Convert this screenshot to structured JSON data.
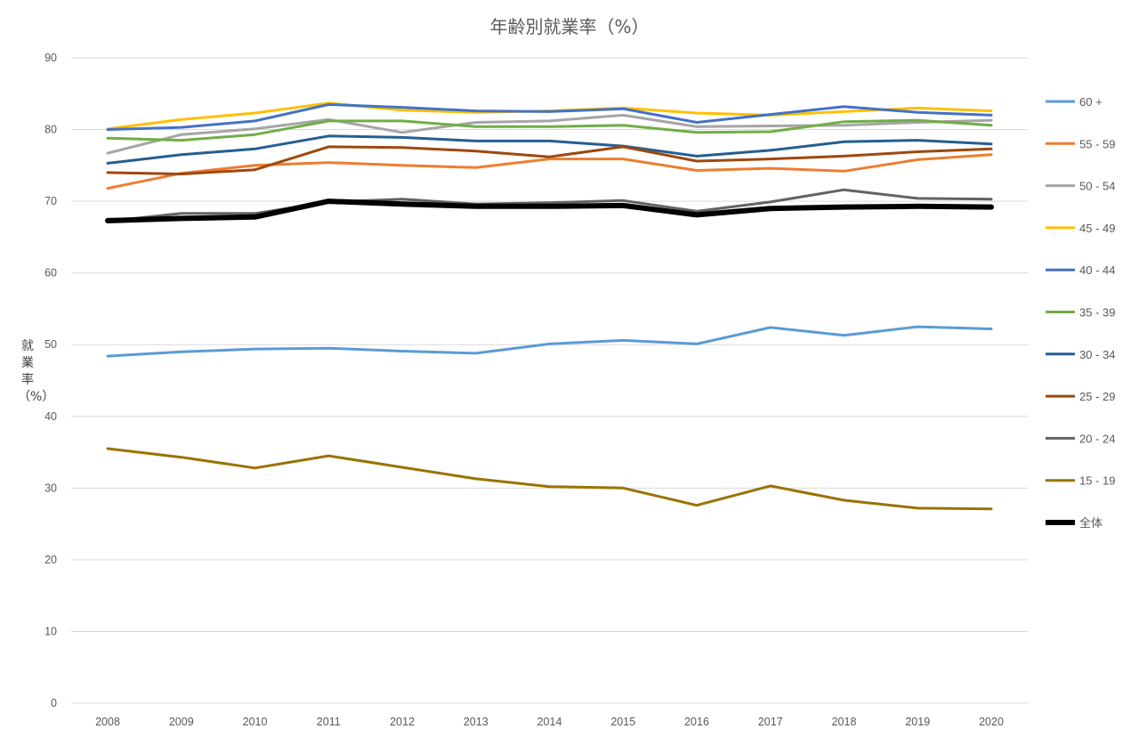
{
  "chart_data": {
    "type": "line",
    "title": "年齢別就業率（%）",
    "xlabel": "",
    "ylabel": "就業率（%）",
    "ylim": [
      0,
      90
    ],
    "yticks": [
      0,
      10,
      20,
      30,
      40,
      50,
      60,
      70,
      80,
      90
    ],
    "grid": true,
    "legend_position": "right",
    "categories": [
      "2008",
      "2009",
      "2010",
      "2011",
      "2012",
      "2013",
      "2014",
      "2015",
      "2016",
      "2017",
      "2018",
      "2019",
      "2020"
    ],
    "series": [
      {
        "name": "60 +",
        "color": "#5b9bd5",
        "width": 3,
        "values": [
          48.4,
          49.0,
          49.4,
          49.5,
          49.1,
          48.8,
          50.1,
          50.6,
          50.1,
          52.4,
          51.3,
          52.5,
          52.2
        ]
      },
      {
        "name": "55 - 59",
        "color": "#ed7d31",
        "width": 3,
        "values": [
          71.8,
          73.9,
          75.0,
          75.4,
          75.0,
          74.7,
          75.9,
          75.9,
          74.3,
          74.6,
          74.2,
          75.8,
          76.5
        ]
      },
      {
        "name": "50 - 54",
        "color": "#a5a5a5",
        "width": 3,
        "values": [
          76.7,
          79.3,
          80.1,
          81.4,
          79.6,
          81.0,
          81.2,
          82.0,
          80.4,
          80.5,
          80.6,
          81.0,
          81.3
        ]
      },
      {
        "name": "45 - 49",
        "color": "#ffc000",
        "width": 3,
        "values": [
          80.1,
          81.4,
          82.3,
          83.7,
          82.7,
          82.4,
          82.6,
          83.0,
          82.3,
          82.0,
          82.5,
          83.0,
          82.6
        ]
      },
      {
        "name": "40 - 44",
        "color": "#4472c4",
        "width": 3,
        "values": [
          80.0,
          80.3,
          81.2,
          83.5,
          83.1,
          82.6,
          82.5,
          82.9,
          81.0,
          82.1,
          83.2,
          82.4,
          82.0
        ]
      },
      {
        "name": "35 - 39",
        "color": "#70ad47",
        "width": 3,
        "values": [
          78.8,
          78.5,
          79.3,
          81.2,
          81.2,
          80.4,
          80.4,
          80.6,
          79.6,
          79.7,
          81.1,
          81.3,
          80.6
        ]
      },
      {
        "name": "30 - 34",
        "color": "#255e91",
        "width": 3,
        "values": [
          75.3,
          76.5,
          77.3,
          79.1,
          78.9,
          78.4,
          78.4,
          77.7,
          76.3,
          77.1,
          78.3,
          78.5,
          78.0
        ]
      },
      {
        "name": "25 - 29",
        "color": "#9e480e",
        "width": 3,
        "values": [
          74.0,
          73.8,
          74.4,
          77.6,
          77.5,
          77.0,
          76.2,
          77.6,
          75.6,
          75.9,
          76.3,
          76.9,
          77.3
        ]
      },
      {
        "name": "20 - 24",
        "color": "#636363",
        "width": 3,
        "values": [
          67.2,
          68.3,
          68.3,
          69.9,
          70.3,
          69.6,
          69.8,
          70.1,
          68.6,
          69.9,
          71.6,
          70.4,
          70.3
        ]
      },
      {
        "name": "15 - 19",
        "color": "#997300",
        "width": 3,
        "values": [
          35.5,
          34.3,
          32.8,
          34.5,
          32.9,
          31.3,
          30.2,
          30.0,
          27.6,
          30.3,
          28.3,
          27.2,
          27.1
        ]
      },
      {
        "name": "全体",
        "color": "#000000",
        "width": 6,
        "values": [
          67.3,
          67.6,
          67.8,
          70.0,
          69.6,
          69.3,
          69.3,
          69.4,
          68.1,
          69.0,
          69.2,
          69.3,
          69.2
        ]
      }
    ]
  }
}
